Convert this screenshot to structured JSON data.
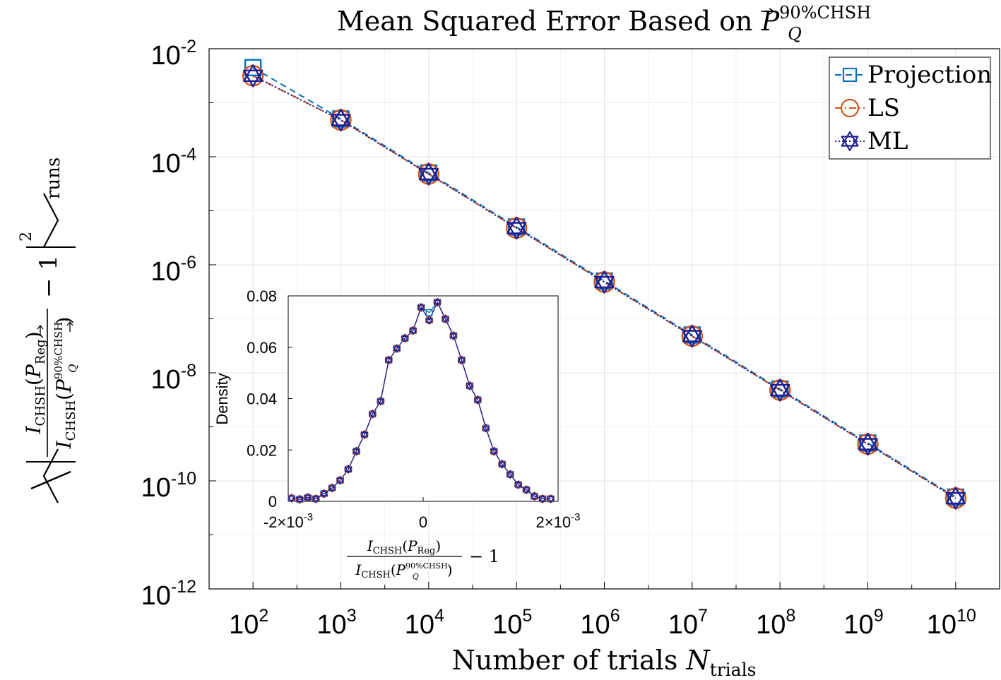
{
  "chart_data": [
    {
      "id": "main",
      "type": "line",
      "scale": {
        "x": "log10",
        "y": "log10"
      },
      "title": {
        "prefix": "Mean Squared Error Based on ",
        "symbol": "P",
        "superscript": "90%CHSH",
        "subscript": "Q"
      },
      "xlabel": {
        "text": "Number of trials ",
        "symbol": "N",
        "subscript": "trials"
      },
      "ylabel": {
        "num_fn": "I",
        "num_fn_sub": "CHSH",
        "num_arg": "P",
        "num_arg_sub": "Reg",
        "den_fn": "I",
        "den_fn_sub": "CHSH",
        "den_arg": "P",
        "den_arg_sub": "Q",
        "den_arg_sup": "90%CHSH",
        "minus": "− 1",
        "power": "2",
        "subscript": "runs"
      },
      "xlim": [
        1.5,
        10.5
      ],
      "ylim": [
        -12,
        -2
      ],
      "xticks": [
        {
          "value": 2,
          "base": "10",
          "exp": "2"
        },
        {
          "value": 3,
          "base": "10",
          "exp": "3"
        },
        {
          "value": 4,
          "base": "10",
          "exp": "4"
        },
        {
          "value": 5,
          "base": "10",
          "exp": "5"
        },
        {
          "value": 6,
          "base": "10",
          "exp": "6"
        },
        {
          "value": 7,
          "base": "10",
          "exp": "7"
        },
        {
          "value": 8,
          "base": "10",
          "exp": "8"
        },
        {
          "value": 9,
          "base": "10",
          "exp": "9"
        },
        {
          "value": 10,
          "base": "10",
          "exp": "10"
        }
      ],
      "yticks": [
        {
          "value": -2,
          "base": "10",
          "exp": "-2"
        },
        {
          "value": -4,
          "base": "10",
          "exp": "-4"
        },
        {
          "value": -6,
          "base": "10",
          "exp": "-6"
        },
        {
          "value": -8,
          "base": "10",
          "exp": "-8"
        },
        {
          "value": -10,
          "base": "10",
          "exp": "-10"
        },
        {
          "value": -12,
          "base": "10",
          "exp": "-12"
        }
      ],
      "grid": true,
      "legend": {
        "position": "top-right"
      },
      "x": [
        2,
        3,
        4,
        5,
        6,
        7,
        8,
        9,
        10
      ],
      "series": [
        {
          "name": "Projection",
          "color": "#0072BD",
          "marker": "square",
          "dash": "dashed",
          "values": [
            -2.35,
            -3.3,
            -4.3,
            -5.3,
            -6.3,
            -7.3,
            -8.3,
            -9.3,
            -10.3
          ]
        },
        {
          "name": "LS",
          "color": "#D95319",
          "marker": "circle",
          "dash": "dashdot",
          "values": [
            -2.5,
            -3.32,
            -4.32,
            -5.32,
            -6.32,
            -7.32,
            -8.32,
            -9.32,
            -10.32
          ]
        },
        {
          "name": "ML",
          "color": "#1f1f8f",
          "marker": "hexagram",
          "dash": "dotted",
          "values": [
            -2.5,
            -3.32,
            -4.32,
            -5.32,
            -6.32,
            -7.32,
            -8.32,
            -9.32,
            -10.32
          ]
        }
      ]
    },
    {
      "id": "inset",
      "type": "line",
      "xlim": [
        -0.002,
        0.002
      ],
      "ylim": [
        0,
        0.08
      ],
      "xticks": [
        {
          "value": -0.002,
          "base": "-2×10",
          "exp": "-3"
        },
        {
          "value": 0,
          "base": "0",
          "exp": ""
        },
        {
          "value": 0.002,
          "base": "2×10",
          "exp": "-3"
        }
      ],
      "yticks": [
        {
          "value": 0,
          "label": "0"
        },
        {
          "value": 0.02,
          "label": "0.02"
        },
        {
          "value": 0.04,
          "label": "0.04"
        },
        {
          "value": 0.06,
          "label": "0.06"
        },
        {
          "value": 0.08,
          "label": "0.08"
        }
      ],
      "ylabel": "Density",
      "xlabel": {
        "num_fn": "I",
        "num_fn_sub": "CHSH",
        "num_arg": "P",
        "num_arg_sub": "Reg",
        "den_fn": "I",
        "den_fn_sub": "CHSH",
        "den_arg": "P",
        "den_arg_sub": "Q",
        "den_arg_sup": "90%CHSH",
        "minus": "− 1"
      },
      "grid": false,
      "x": [
        -0.00195,
        -0.00183,
        -0.00171,
        -0.00159,
        -0.00147,
        -0.00135,
        -0.00123,
        -0.00111,
        -0.00099,
        -0.00087,
        -0.00075,
        -0.00063,
        -0.00051,
        -0.00039,
        -0.00027,
        -0.00015,
        -3e-05,
        9e-05,
        0.00021,
        0.00033,
        0.00045,
        0.00057,
        0.00069,
        0.00081,
        0.00093,
        0.00105,
        0.00117,
        0.00129,
        0.00141,
        0.00153,
        0.00165,
        0.00177,
        0.00189
      ],
      "series": [
        {
          "name": "Projection",
          "color": "#0072BD",
          "marker": "square",
          "values": [
            0.0012,
            0.0008,
            0.0015,
            0.001,
            0.003,
            0.0052,
            0.0082,
            0.0125,
            0.0195,
            0.026,
            0.034,
            0.039,
            0.055,
            0.0595,
            0.0635,
            0.0665,
            0.0755,
            0.0735,
            0.0775,
            0.071,
            0.0645,
            0.055,
            0.045,
            0.0395,
            0.0285,
            0.0195,
            0.0145,
            0.0105,
            0.0065,
            0.0045,
            0.002,
            0.001,
            0.001
          ]
        },
        {
          "name": "LS",
          "color": "#D95319",
          "marker": "circle",
          "values": [
            0.0012,
            0.0008,
            0.0015,
            0.001,
            0.003,
            0.0052,
            0.0082,
            0.0125,
            0.0195,
            0.026,
            0.034,
            0.039,
            0.055,
            0.0595,
            0.0635,
            0.0665,
            0.0755,
            0.0705,
            0.0775,
            0.071,
            0.0645,
            0.055,
            0.045,
            0.0395,
            0.0285,
            0.0195,
            0.0145,
            0.0105,
            0.0065,
            0.0045,
            0.002,
            0.001,
            0.001
          ]
        },
        {
          "name": "ML",
          "color": "#1f1f8f",
          "marker": "hexagram",
          "values": [
            0.0012,
            0.0008,
            0.0015,
            0.001,
            0.003,
            0.0052,
            0.0082,
            0.0125,
            0.0195,
            0.026,
            0.034,
            0.039,
            0.055,
            0.0595,
            0.0635,
            0.0665,
            0.0755,
            0.0705,
            0.0775,
            0.071,
            0.0645,
            0.055,
            0.045,
            0.0395,
            0.0285,
            0.0195,
            0.0145,
            0.0105,
            0.0065,
            0.0045,
            0.002,
            0.001,
            0.001
          ]
        }
      ]
    }
  ]
}
